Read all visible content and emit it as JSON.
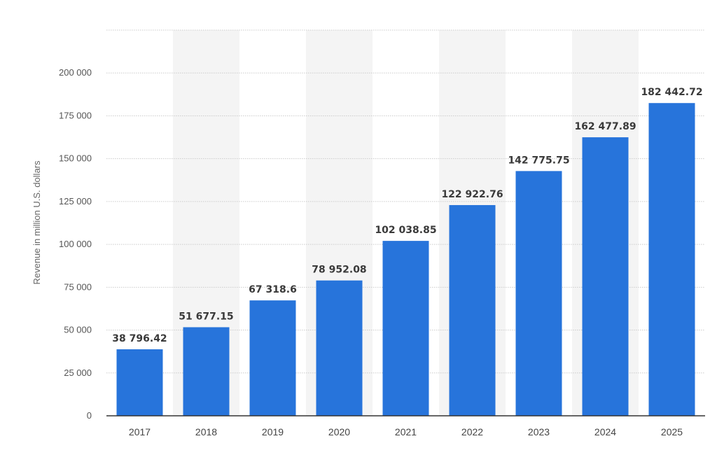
{
  "chart_data": {
    "type": "bar",
    "title": "",
    "xlabel": "",
    "ylabel": "Revenue in million U.S. dollars",
    "categories": [
      "2017",
      "2018",
      "2019",
      "2020",
      "2021",
      "2022",
      "2023",
      "2024",
      "2025"
    ],
    "values": [
      38796.42,
      51677.15,
      67318.6,
      78952.08,
      102038.85,
      122922.76,
      142775.75,
      162477.89,
      182442.72
    ],
    "data_labels": [
      "38 796.42",
      "51 677.15",
      "67 318.6",
      "78 952.08",
      "102 038.85",
      "122 922.76",
      "142 775.75",
      "162 477.89",
      "182 442.72"
    ],
    "yticks": [
      0,
      25000,
      50000,
      75000,
      100000,
      125000,
      150000,
      175000,
      200000
    ],
    "ytick_labels": [
      "0",
      "25 000",
      "50 000",
      "75 000",
      "100 000",
      "125 000",
      "150 000",
      "175 000",
      "200 000"
    ],
    "ylim": [
      0,
      225000
    ],
    "grid": true,
    "legend": "none",
    "colors": {
      "bar": "#2774DB",
      "alt_band": "#F4F4F4",
      "grid": "#CCCCCC",
      "axis": "#333333"
    }
  }
}
